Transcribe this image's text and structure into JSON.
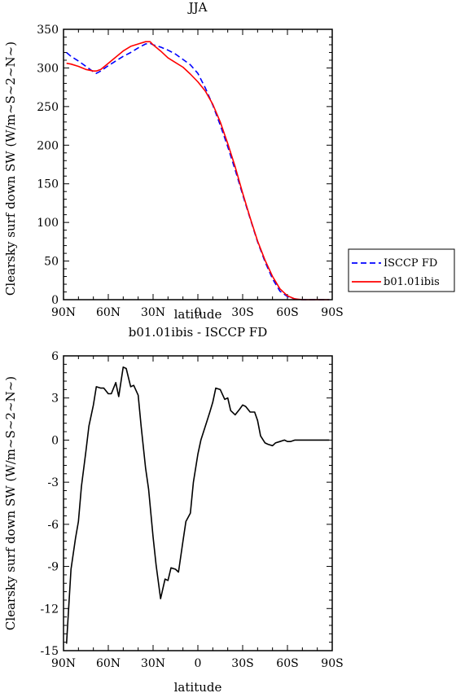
{
  "chart_data": [
    {
      "type": "line",
      "title": "JJA",
      "xlabel": "latitude",
      "ylabel": "Clearsky surf down SW (W/m~S~2~N~)",
      "xlim": [
        90,
        -90
      ],
      "ylim": [
        0,
        350
      ],
      "x_ticks": [
        90,
        60,
        30,
        0,
        -30,
        -60,
        -90
      ],
      "x_tick_labels": [
        "90N",
        "60N",
        "30N",
        "0",
        "30S",
        "60S",
        "90S"
      ],
      "y_ticks": [
        0,
        50,
        100,
        150,
        200,
        250,
        300,
        350
      ],
      "y_tick_labels": [
        "0",
        "50",
        "100",
        "150",
        "200",
        "250",
        "300",
        "350"
      ],
      "legend_position": "right",
      "series": [
        {
          "name": "ISCCP FD",
          "color": "#0000ff",
          "style": "dashed",
          "x": [
            88,
            85,
            80,
            75,
            70,
            68,
            65,
            60,
            55,
            50,
            45,
            40,
            35,
            32,
            30,
            25,
            20,
            15,
            10,
            5,
            0,
            -5,
            -10,
            -15,
            -20,
            -25,
            -30,
            -35,
            -40,
            -45,
            -50,
            -55,
            -60,
            -65,
            -70,
            -75,
            -80,
            -85,
            -88
          ],
          "y": [
            320,
            315,
            309,
            302,
            295,
            293,
            296,
            303,
            309,
            315,
            320,
            326,
            331,
            332,
            330,
            327,
            323,
            318,
            311,
            304,
            293,
            274,
            252,
            226,
            198,
            168,
            136,
            105,
            75,
            49,
            27,
            11,
            4,
            1,
            0,
            0,
            0,
            0,
            0
          ]
        },
        {
          "name": "b01.01ibis",
          "color": "#ff0000",
          "style": "solid",
          "x": [
            88,
            85,
            80,
            75,
            70,
            68,
            65,
            60,
            55,
            50,
            45,
            40,
            35,
            32,
            30,
            25,
            20,
            15,
            10,
            5,
            0,
            -5,
            -10,
            -15,
            -20,
            -25,
            -30,
            -35,
            -40,
            -45,
            -50,
            -55,
            -60,
            -65,
            -70,
            -75,
            -80,
            -85,
            -88
          ],
          "y": [
            306,
            305,
            302,
            298,
            296,
            296,
            298,
            306,
            314,
            322,
            328,
            331,
            334,
            334,
            330,
            322,
            313,
            307,
            301,
            292,
            282,
            270,
            253,
            230,
            202,
            172,
            138,
            106,
            76,
            51,
            30,
            14,
            5,
            1,
            0,
            0,
            0,
            0,
            0
          ]
        }
      ]
    },
    {
      "type": "line",
      "title": "b01.01ibis - ISCCP FD",
      "xlabel": "latitude",
      "ylabel": "Clearsky surf down SW (W/m~S~2~N~)",
      "xlim": [
        90,
        -90
      ],
      "ylim": [
        -15,
        6
      ],
      "x_ticks": [
        90,
        60,
        30,
        0,
        -30,
        -60,
        -90
      ],
      "x_tick_labels": [
        "90N",
        "60N",
        "30N",
        "0",
        "30S",
        "60S",
        "90S"
      ],
      "y_ticks": [
        -15,
        -12,
        -9,
        -6,
        -3,
        0,
        3,
        6
      ],
      "y_tick_labels": [
        "-15",
        "-12",
        "-9",
        "-6",
        "-3",
        "0",
        "3",
        "6"
      ],
      "series": [
        {
          "color": "#000000",
          "style": "solid",
          "x": [
            88,
            85,
            82,
            80,
            78,
            75,
            73,
            70,
            68,
            65,
            63,
            60,
            58,
            55,
            53,
            50,
            48,
            45,
            43,
            40,
            38,
            35,
            33,
            30,
            28,
            25,
            22,
            20,
            18,
            15,
            13,
            10,
            8,
            5,
            3,
            0,
            -2,
            -5,
            -8,
            -10,
            -12,
            -15,
            -18,
            -20,
            -22,
            -25,
            -28,
            -30,
            -32,
            -35,
            -38,
            -40,
            -42,
            -45,
            -47,
            -50,
            -52,
            -55,
            -58,
            -60,
            -62,
            -65,
            -68,
            -70,
            -73,
            -75,
            -78,
            -80,
            -82,
            -85,
            -88
          ],
          "y": [
            -14.5,
            -9.2,
            -7.0,
            -5.8,
            -3.3,
            -0.8,
            1.0,
            2.5,
            3.8,
            3.7,
            3.7,
            3.3,
            3.3,
            4.1,
            3.1,
            5.2,
            5.1,
            3.8,
            3.9,
            3.2,
            1.0,
            -2.0,
            -3.5,
            -6.9,
            -8.9,
            -11.3,
            -9.9,
            -10.0,
            -9.1,
            -9.2,
            -9.4,
            -7.2,
            -5.8,
            -5.2,
            -3.0,
            -1.0,
            0.0,
            1.0,
            2.0,
            2.7,
            3.7,
            3.6,
            2.9,
            3.0,
            2.1,
            1.8,
            2.2,
            2.5,
            2.4,
            2.0,
            2.0,
            1.4,
            0.3,
            -0.2,
            -0.3,
            -0.4,
            -0.2,
            -0.1,
            0.0,
            -0.1,
            -0.1,
            0.0,
            0.0,
            0.0,
            0.0,
            0.0,
            0.0,
            0.0,
            0.0,
            0.0,
            0.0
          ]
        }
      ]
    }
  ]
}
